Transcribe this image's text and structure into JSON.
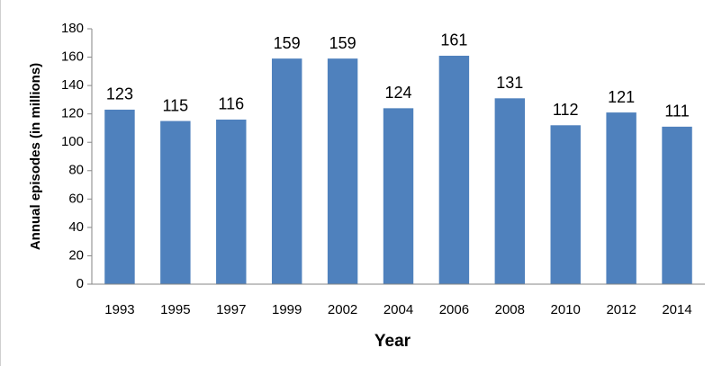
{
  "chart_data": {
    "type": "bar",
    "x_label": "Year",
    "y_label": "Annual episodes  (in millions)",
    "categories": [
      "1993",
      "1995",
      "1997",
      "1999",
      "2002",
      "2004",
      "2006",
      "2008",
      "2010",
      "2012",
      "2014"
    ],
    "values": [
      123,
      115,
      116,
      159,
      159,
      124,
      161,
      131,
      112,
      121,
      111
    ],
    "color": "#4f81bd",
    "ylim": [
      0,
      180
    ],
    "yticks": [
      0,
      20,
      40,
      60,
      80,
      100,
      120,
      140,
      160,
      180
    ],
    "grid": false,
    "data_labels": true
  }
}
